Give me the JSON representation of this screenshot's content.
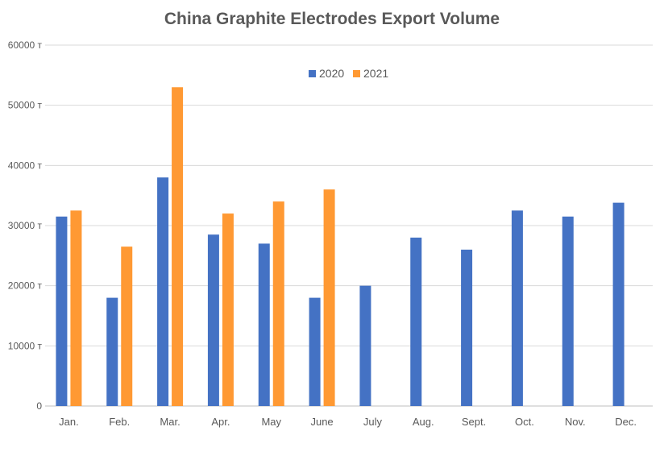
{
  "chart_data": {
    "type": "bar",
    "title": "China Graphite Electrodes Export Volume",
    "xlabel": "",
    "ylabel": "",
    "ylim": [
      0,
      60000
    ],
    "y_ticks": [
      0,
      10000,
      20000,
      30000,
      40000,
      50000,
      60000
    ],
    "y_tick_labels": [
      "0",
      "10000 т",
      "20000 т",
      "30000 т",
      "40000 т",
      "50000 т",
      "60000 т"
    ],
    "grid": true,
    "legend_position": "top-center",
    "categories": [
      "Jan.",
      "Feb.",
      "Mar.",
      "Apr.",
      "May",
      "June",
      "July",
      "Aug.",
      "Sept.",
      "Oct.",
      "Nov.",
      "Dec."
    ],
    "series": [
      {
        "name": "2020",
        "color": "#4472c4",
        "values": [
          31500,
          18000,
          38000,
          28500,
          27000,
          18000,
          20000,
          28000,
          26000,
          32500,
          31500,
          33800
        ]
      },
      {
        "name": "2021",
        "color": "#ff9933",
        "values": [
          32500,
          26500,
          53000,
          32000,
          34000,
          36000,
          null,
          null,
          null,
          null,
          null,
          null
        ]
      }
    ]
  }
}
